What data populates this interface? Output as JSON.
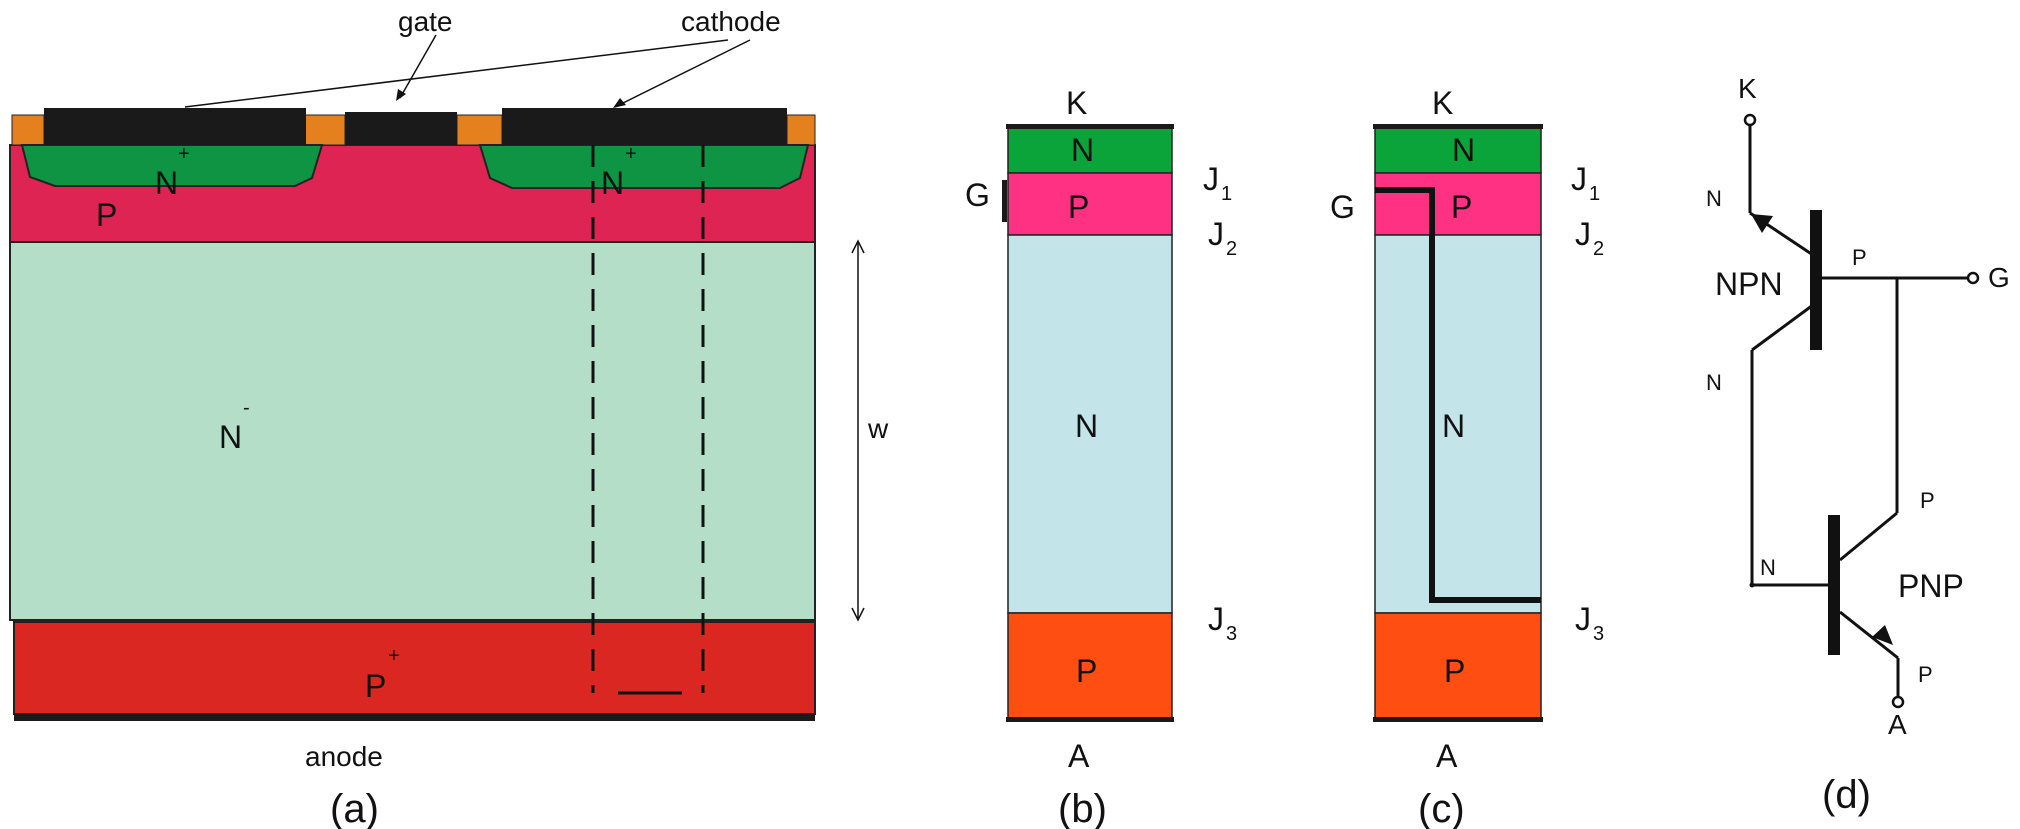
{
  "panel_a": {
    "gate": "gate",
    "cathode": "cathode",
    "n_plus_left": "N",
    "n_plus_right": "N",
    "plus": "+",
    "p_region": "P",
    "n_minus": "N",
    "minus": "-",
    "width_label": "w",
    "p_plus": "P",
    "anode": "anode",
    "caption": "(a)",
    "colors": {
      "p_region": "#dd2453",
      "n_minus": "#b5dec8",
      "p_plus": "#da2721",
      "n_plus": "#0e9443",
      "contact_orange": "#e5801e",
      "metal": "#1a1a1a"
    }
  },
  "panel_b": {
    "top": "K",
    "n": "N",
    "j1": "J",
    "j1_sub": "1",
    "g": "G",
    "p": "P",
    "j2": "J",
    "j2_sub": "2",
    "n_mid": "N",
    "j3": "J",
    "j3_sub": "3",
    "p_bottom": "P",
    "bottom": "A",
    "caption": "(b)",
    "colors": {
      "n_top": "#0aa43a",
      "p_pink": "#ff3183",
      "n_light": "#c3e4e8",
      "p_orange": "#ff4e11"
    }
  },
  "panel_c": {
    "top": "K",
    "n": "N",
    "j1": "J",
    "j1_sub": "1",
    "g": "G",
    "p": "P",
    "j2": "J",
    "j2_sub": "2",
    "n_mid": "N",
    "j3": "J",
    "j3_sub": "3",
    "p_bottom": "P",
    "bottom": "A",
    "caption": "(c)"
  },
  "panel_d": {
    "k": "K",
    "n_top": "N",
    "npn": "NPN",
    "p_gate": "P",
    "g": "G",
    "n_mid": "N",
    "p_right": "P",
    "n_pnp": "N",
    "pnp": "PNP",
    "p_bottom": "P",
    "a": "A",
    "caption": "(d)"
  }
}
